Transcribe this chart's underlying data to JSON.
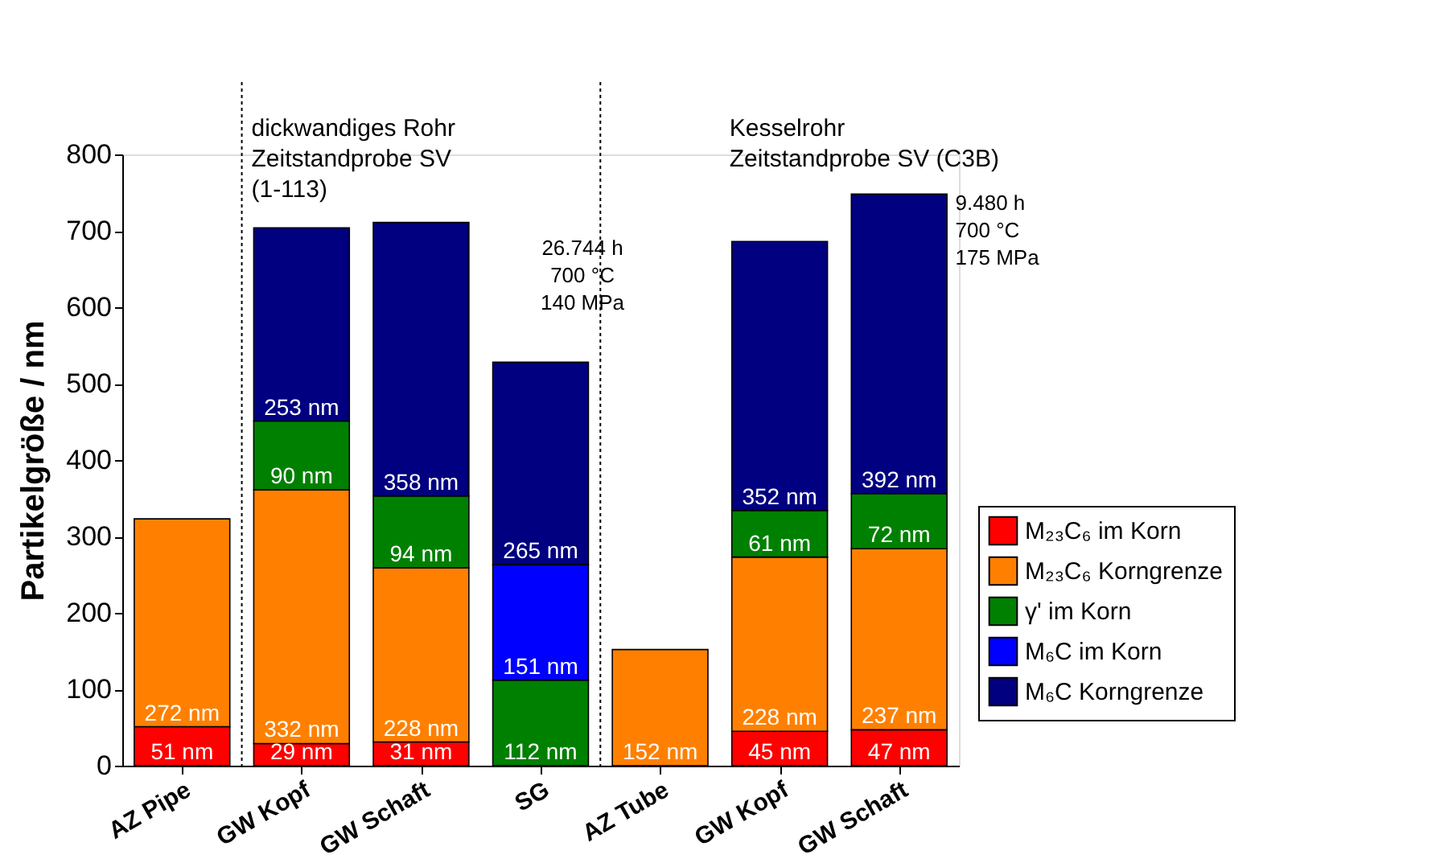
{
  "chart_data": {
    "type": "bar",
    "stacked": true,
    "ylabel": "Partikelgröße / nm",
    "categories": [
      "AZ Pipe",
      "GW Kopf",
      "GW Schaft",
      "SG",
      "AZ Tube",
      "GW Kopf",
      "GW Schaft"
    ],
    "series": [
      {
        "name": "M₂₃C₆ im Korn",
        "color": "#ff0000",
        "values": [
          51,
          29,
          31,
          null,
          null,
          45,
          47
        ],
        "value_labels": [
          "51 nm",
          "29 nm",
          "31 nm",
          null,
          null,
          "45 nm",
          "47 nm"
        ]
      },
      {
        "name": "M₂₃C₆ Korngrenze",
        "color": "#ff8000",
        "values": [
          272,
          332,
          228,
          null,
          152,
          228,
          237
        ],
        "value_labels": [
          "272 nm",
          "332 nm",
          "228 nm",
          null,
          "152 nm",
          "228 nm",
          "237 nm"
        ]
      },
      {
        "name": "γ' im Korn",
        "color": "#008000",
        "values": [
          null,
          90,
          94,
          112,
          null,
          61,
          72
        ],
        "value_labels": [
          null,
          "90 nm",
          "94 nm",
          "112 nm",
          null,
          "61 nm",
          "72 nm"
        ]
      },
      {
        "name": "M₆C im Korn",
        "color": "#0000ff",
        "values": [
          null,
          null,
          null,
          151,
          null,
          null,
          null
        ],
        "value_labels": [
          null,
          null,
          null,
          "151 nm",
          null,
          null,
          null
        ]
      },
      {
        "name": "M₆C Korngrenze",
        "color": "#000080",
        "values": [
          null,
          253,
          358,
          265,
          null,
          352,
          392
        ],
        "value_labels": [
          null,
          "253 nm",
          "358 nm",
          "265 nm",
          null,
          "352 nm",
          "392 nm"
        ]
      }
    ],
    "ylim": [
      0,
      800
    ],
    "yticks": [
      0,
      100,
      200,
      300,
      400,
      500,
      600,
      700,
      800
    ],
    "annotations": [
      "dickwandiges Rohr\nZeitstandprobe SV\n(1-113)",
      "26.744 h\n700 °C\n140 MPa",
      "Kesselrohr\nZeitstandprobe SV (C3B)",
      "9.480 h\n700 °C\n175 MPa"
    ],
    "grid": false,
    "legend": "right"
  }
}
